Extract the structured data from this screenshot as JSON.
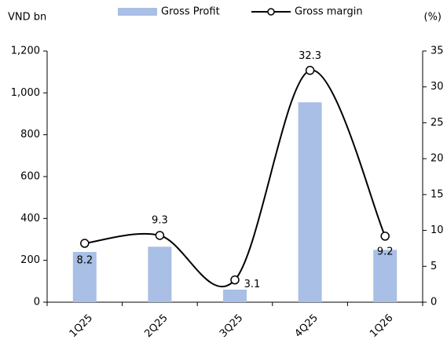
{
  "chart_data": {
    "type": "bar-line",
    "y_label": "VND bn",
    "y2_label": "(%)",
    "categories": [
      "1Q25",
      "2Q25",
      "3Q25",
      "4Q25",
      "1Q26"
    ],
    "series": [
      {
        "name": "Gross Profit",
        "color": "#a9bfe5",
        "type": "bar",
        "values": [
          240,
          265,
          60,
          955,
          250
        ]
      },
      {
        "name": "Gross margin",
        "color": "#000000",
        "type": "line",
        "axis": "y2",
        "values": [
          8.2,
          9.3,
          3.1,
          32.3,
          9.2
        ]
      }
    ],
    "ylim": [
      0,
      1200
    ],
    "yticks": [
      0,
      200,
      400,
      600,
      800,
      {
        "value": 1000,
        "label": "1,000"
      },
      {
        "value": 1200,
        "label": "1,200"
      }
    ],
    "y2lim": [
      0,
      35
    ],
    "y2ticks": [
      0,
      5,
      10,
      15,
      20,
      25,
      30,
      35
    ],
    "legend": "top"
  }
}
